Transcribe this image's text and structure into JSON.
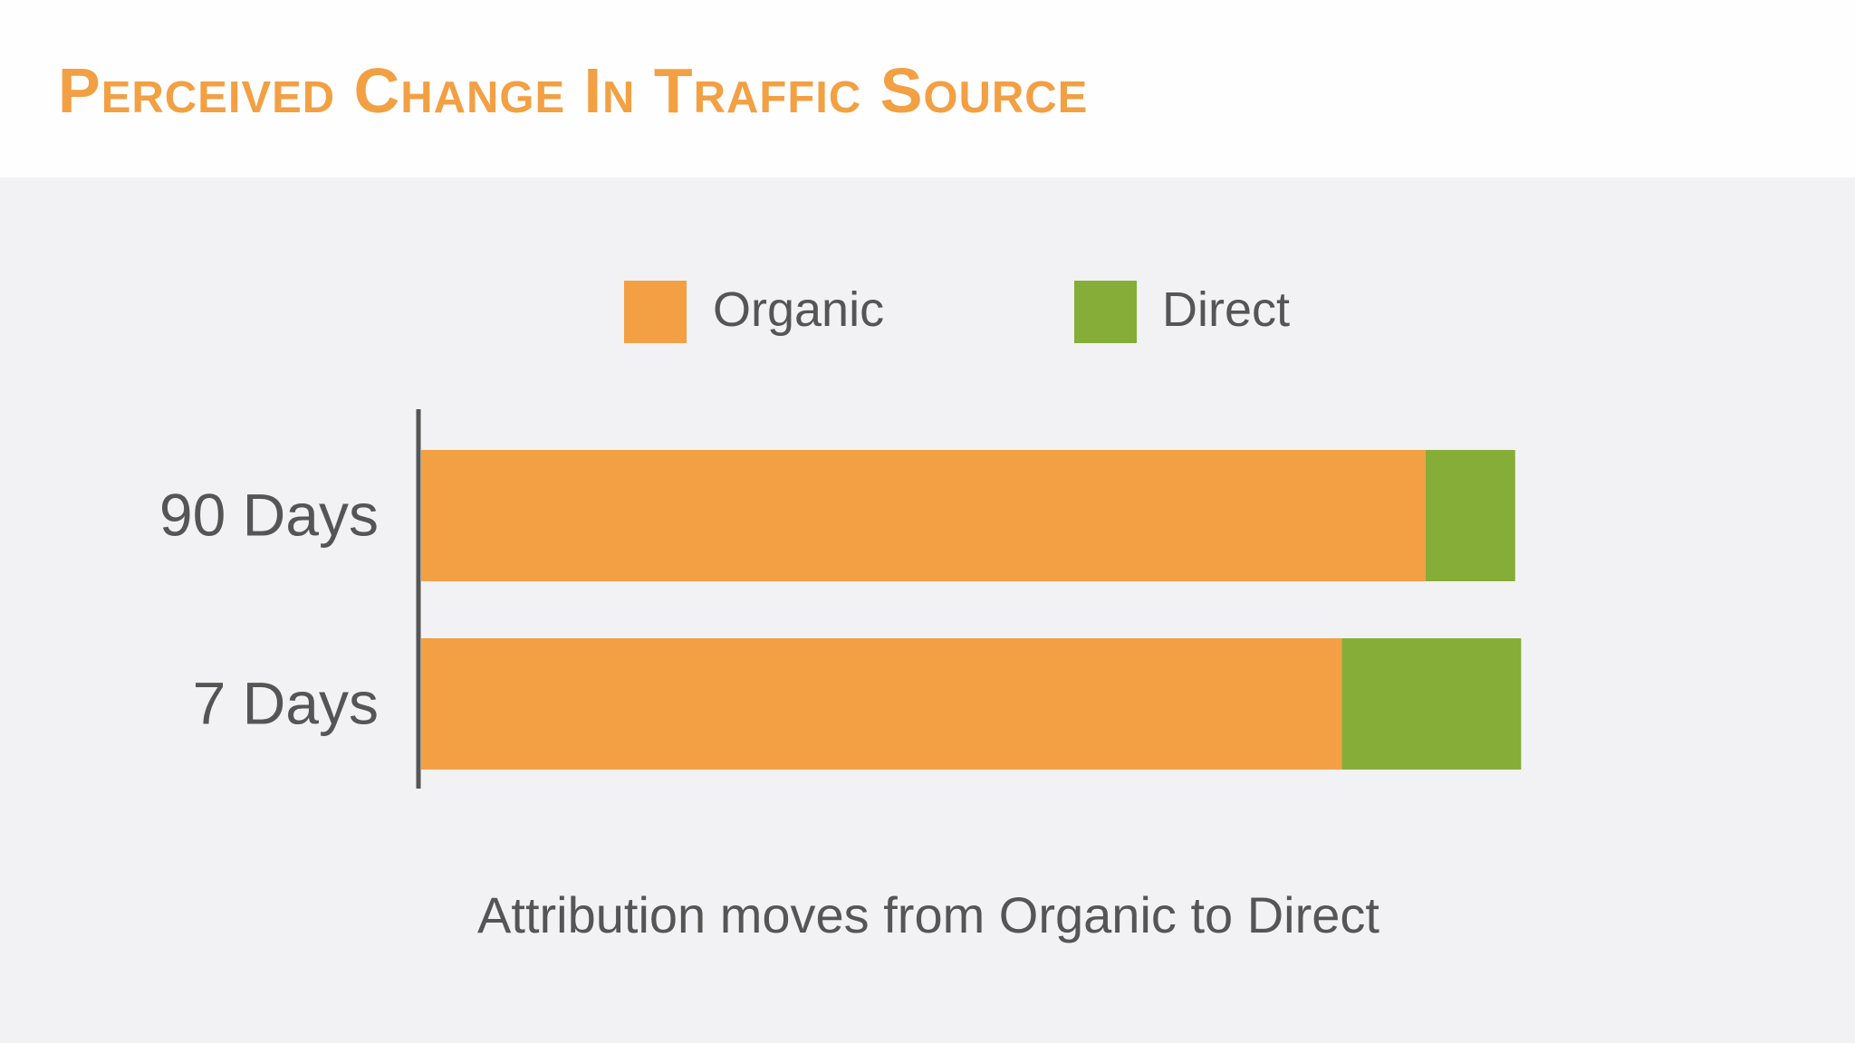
{
  "page": {
    "title": "Perceived Change In Traffic Source",
    "caption": "Attribution moves from Organic to Direct"
  },
  "colors": {
    "organic": "#f2a043",
    "direct": "#86ad37",
    "text": "#555555",
    "title": "#f2a043"
  },
  "chart_data": {
    "type": "bar",
    "orientation": "horizontal",
    "stacked": true,
    "categories": [
      "90 Days",
      "7 Days"
    ],
    "series": [
      {
        "name": "Organic",
        "values": [
          84,
          77
        ]
      },
      {
        "name": "Direct",
        "values": [
          7.5,
          15
        ]
      }
    ],
    "legend_position": "top-center",
    "grid": false
  }
}
